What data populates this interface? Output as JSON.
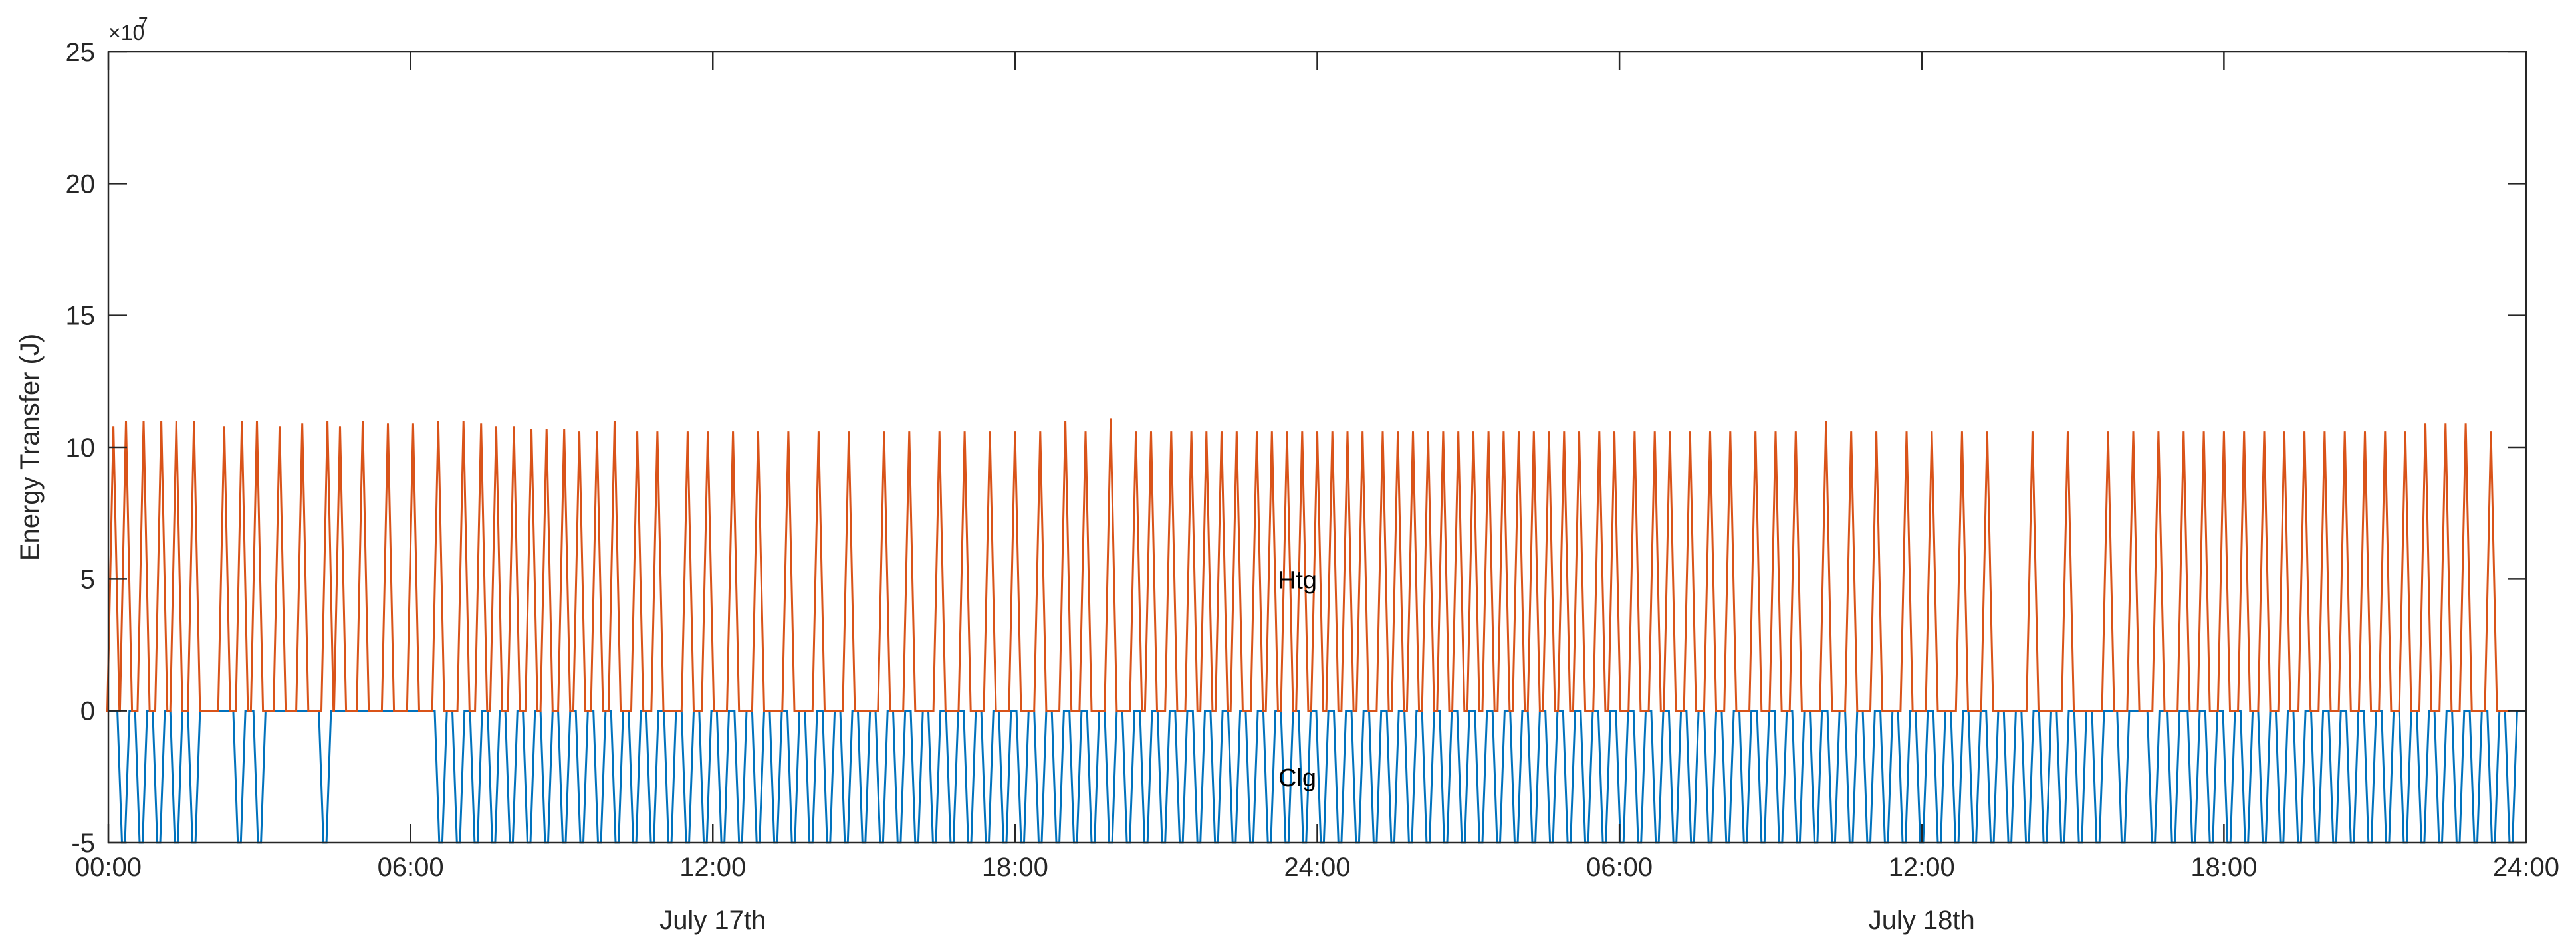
{
  "chart_data": {
    "type": "line",
    "title": "",
    "xlabel": "",
    "ylabel": "Energy Transfer (J)",
    "y_exponent_label": "×10",
    "y_exponent_power": "7",
    "ylim": [
      -5,
      25
    ],
    "yticks": [
      -5,
      0,
      5,
      10,
      15,
      20,
      25
    ],
    "xlim_hours": [
      0,
      48
    ],
    "xtick_labels": [
      "00:00",
      "06:00",
      "12:00",
      "18:00",
      "24:00",
      "06:00",
      "12:00",
      "18:00",
      "24:00"
    ],
    "day_labels": [
      {
        "text": "July 17th",
        "hour": 12
      },
      {
        "text": "July 18th",
        "hour": 36
      }
    ],
    "annotations": [
      {
        "text": "Htg",
        "hour": 24,
        "y": 5
      },
      {
        "text": "Clg",
        "hour": 24,
        "y": -2.5
      }
    ],
    "grid": false,
    "series": [
      {
        "name": "Htg",
        "color": "#D95319",
        "pattern": "periodic spikes from 0 to about 10.5 (x10^7 J), roughly 3 per hour",
        "spike_hours": [
          0.1,
          0.35,
          0.7,
          1.05,
          1.35,
          1.7,
          2.3,
          2.65,
          2.95,
          3.4,
          3.85,
          4.35,
          4.6,
          5.05,
          5.55,
          6.05,
          6.55,
          7.05,
          7.4,
          7.7,
          8.05,
          8.4,
          8.7,
          9.05,
          9.35,
          9.7,
          10.05,
          10.5,
          10.9,
          11.5,
          11.9,
          12.4,
          12.9,
          13.5,
          14.1,
          14.7,
          15.4,
          15.9,
          16.5,
          17.0,
          17.5,
          18.0,
          18.5,
          19.0,
          19.4,
          19.9,
          20.4,
          20.7,
          21.1,
          21.5,
          21.8,
          22.1,
          22.4,
          22.8,
          23.1,
          23.4,
          23.7,
          24.0,
          24.3,
          24.6,
          24.9,
          25.3,
          25.6,
          25.9,
          26.2,
          26.5,
          26.8,
          27.1,
          27.4,
          27.7,
          28.0,
          28.3,
          28.6,
          28.9,
          29.2,
          29.6,
          29.9,
          30.3,
          30.7,
          31.0,
          31.4,
          31.8,
          32.2,
          32.7,
          33.1,
          33.5,
          34.1,
          34.6,
          35.1,
          35.7,
          36.2,
          36.8,
          37.3,
          38.2,
          38.9,
          39.7,
          40.2,
          40.7,
          41.2,
          41.6,
          42.0,
          42.4,
          42.8,
          43.2,
          43.6,
          44.0,
          44.4,
          44.8,
          45.2,
          45.6,
          46.0,
          46.4,
          46.8,
          47.3,
          47.8
        ],
        "spike_values": [
          10.8,
          11.0,
          11.0,
          11.0,
          11.0,
          11.0,
          10.8,
          11.0,
          11.0,
          10.8,
          10.9,
          11.0,
          10.8,
          11.0,
          10.9,
          10.9,
          11.0,
          11.0,
          10.9,
          10.8,
          10.8,
          10.7,
          10.7,
          10.7,
          10.6,
          10.6,
          11.0,
          10.6,
          10.6,
          10.6,
          10.6,
          10.6,
          10.6,
          10.6,
          10.6,
          10.6,
          10.6,
          10.6,
          10.6,
          10.6,
          10.6,
          10.6,
          10.6,
          11.0,
          10.6,
          11.1,
          10.6,
          10.6,
          10.6,
          10.6,
          10.6,
          10.6,
          10.6,
          10.6,
          10.6,
          10.6,
          10.6,
          10.6,
          10.6,
          10.6,
          10.6,
          10.6,
          10.6,
          10.6,
          10.6,
          10.6,
          10.6,
          10.6,
          10.6,
          10.6,
          10.6,
          10.6,
          10.6,
          10.6,
          10.6,
          10.6,
          10.6,
          10.6,
          10.6,
          10.6,
          10.6,
          10.6,
          10.6,
          10.6,
          10.6,
          10.6,
          11.0,
          10.6,
          10.6,
          10.6,
          10.6,
          10.6,
          10.6,
          10.6,
          10.6,
          10.6,
          10.6,
          10.6,
          10.6,
          10.6,
          10.6,
          10.6,
          10.6,
          10.6,
          10.6,
          10.6,
          10.6,
          10.6,
          10.6,
          10.6,
          10.9,
          10.9,
          10.9,
          10.6
        ]
      },
      {
        "name": "Clg",
        "color": "#0072BD",
        "pattern": "periodic dips from 0 to about -5 (x10^7 J)",
        "dip_hours": [
          0.3,
          0.65,
          1.0,
          1.35,
          1.7,
          2.6,
          3.0,
          4.3,
          6.6,
          6.95,
          7.3,
          7.65,
          8.0,
          8.35,
          8.7,
          9.05,
          9.4,
          9.75,
          10.1,
          10.45,
          10.8,
          11.15,
          11.5,
          11.85,
          12.2,
          12.55,
          12.9,
          13.25,
          13.6,
          13.95,
          14.3,
          14.65,
          15.0,
          15.35,
          15.7,
          16.05,
          16.4,
          16.75,
          17.1,
          17.45,
          17.8,
          18.15,
          18.5,
          18.85,
          19.2,
          19.55,
          19.9,
          20.25,
          20.6,
          20.95,
          21.3,
          21.65,
          22.0,
          22.35,
          22.7,
          23.05,
          23.4,
          23.75,
          24.1,
          24.45,
          24.8,
          25.15,
          25.5,
          25.85,
          26.2,
          26.55,
          26.9,
          27.25,
          27.6,
          27.95,
          28.3,
          28.65,
          29.0,
          29.35,
          29.7,
          30.05,
          30.4,
          30.75,
          31.1,
          31.45,
          31.8,
          32.15,
          32.5,
          32.85,
          33.2,
          33.55,
          33.9,
          34.25,
          34.6,
          34.95,
          35.3,
          35.65,
          36.0,
          36.35,
          36.7,
          37.05,
          37.4,
          37.75,
          38.1,
          38.45,
          38.8,
          39.15,
          39.5,
          40.0,
          40.6,
          41.0,
          41.4,
          41.75,
          42.1,
          42.45,
          42.8,
          43.15,
          43.5,
          43.85,
          44.2,
          44.55,
          44.9,
          45.25,
          45.6,
          45.95,
          46.3,
          46.65,
          47.0,
          47.35,
          47.7
        ],
        "dip_value": -5
      }
    ]
  }
}
